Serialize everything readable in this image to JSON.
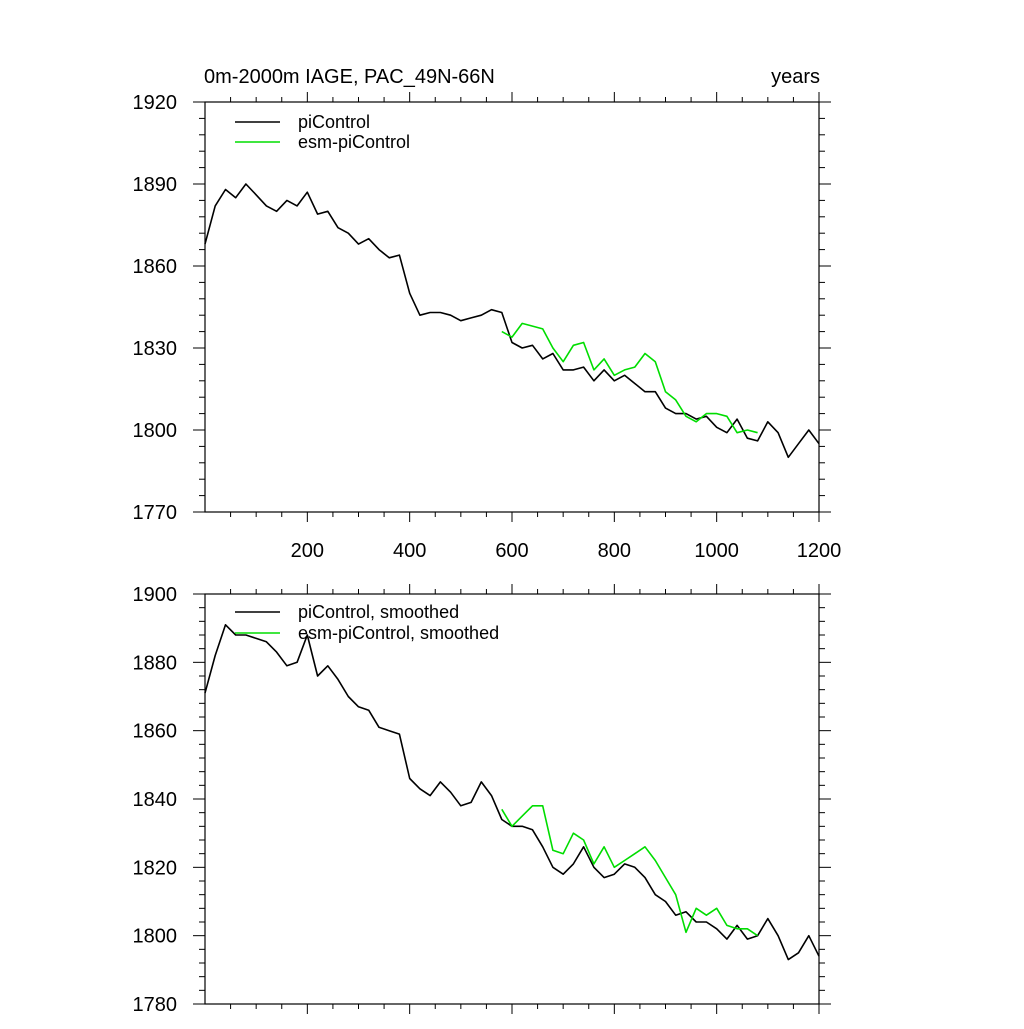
{
  "chart_data": [
    {
      "type": "line",
      "title_left": "0m-2000m IAGE, PAC_49N-66N",
      "title_right": "years",
      "xlim": [
        0,
        1200
      ],
      "ylim": [
        1770,
        1920
      ],
      "x_ticks": [
        200,
        400,
        600,
        800,
        1000,
        1200
      ],
      "y_ticks": [
        1770,
        1800,
        1830,
        1860,
        1890,
        1920
      ],
      "x_tick_labels_visible": true,
      "legend_position": "top-left",
      "series": [
        {
          "name": "piControl",
          "color": "#000000",
          "x": [
            0,
            20,
            40,
            60,
            80,
            100,
            120,
            140,
            160,
            180,
            200,
            220,
            240,
            260,
            280,
            300,
            320,
            340,
            360,
            380,
            400,
            420,
            440,
            460,
            480,
            500,
            520,
            540,
            560,
            580,
            600,
            620,
            640,
            660,
            680,
            700,
            720,
            740,
            760,
            780,
            800,
            820,
            840,
            860,
            880,
            900,
            920,
            940,
            960,
            980,
            1000,
            1020,
            1040,
            1060,
            1080,
            1100,
            1120,
            1140,
            1160,
            1180,
            1200
          ],
          "values": [
            1868,
            1882,
            1888,
            1885,
            1890,
            1886,
            1882,
            1880,
            1884,
            1882,
            1887,
            1879,
            1880,
            1874,
            1872,
            1868,
            1870,
            1866,
            1863,
            1864,
            1850,
            1842,
            1843,
            1843,
            1842,
            1840,
            1841,
            1842,
            1844,
            1843,
            1832,
            1830,
            1831,
            1826,
            1828,
            1822,
            1822,
            1823,
            1818,
            1822,
            1818,
            1820,
            1817,
            1814,
            1814,
            1808,
            1806,
            1806,
            1804,
            1805,
            1801,
            1799,
            1804,
            1797,
            1796,
            1803,
            1799,
            1790,
            1795,
            1800,
            1795
          ]
        },
        {
          "name": "esm-piControl",
          "color": "#00dd00",
          "x": [
            580,
            600,
            620,
            640,
            660,
            680,
            700,
            720,
            740,
            760,
            780,
            800,
            820,
            840,
            860,
            880,
            900,
            920,
            940,
            960,
            980,
            1000,
            1020,
            1040,
            1060,
            1080
          ],
          "values": [
            1836,
            1834,
            1839,
            1838,
            1837,
            1830,
            1825,
            1831,
            1832,
            1822,
            1826,
            1820,
            1822,
            1823,
            1828,
            1825,
            1814,
            1811,
            1805,
            1803,
            1806,
            1806,
            1805,
            1799,
            1800,
            1799
          ]
        }
      ]
    },
    {
      "type": "line",
      "xlim": [
        0,
        1200
      ],
      "ylim": [
        1780,
        1900
      ],
      "x_ticks": [
        200,
        400,
        600,
        800,
        1000,
        1200
      ],
      "y_ticks": [
        1780,
        1800,
        1820,
        1840,
        1860,
        1880,
        1900
      ],
      "x_tick_labels_visible": false,
      "legend_position": "top-left",
      "series": [
        {
          "name": "piControl, smoothed",
          "color": "#000000",
          "x": [
            0,
            20,
            40,
            60,
            80,
            100,
            120,
            140,
            160,
            180,
            200,
            220,
            240,
            260,
            280,
            300,
            320,
            340,
            360,
            380,
            400,
            420,
            440,
            460,
            480,
            500,
            520,
            540,
            560,
            580,
            600,
            620,
            640,
            660,
            680,
            700,
            720,
            740,
            760,
            780,
            800,
            820,
            840,
            860,
            880,
            900,
            920,
            940,
            960,
            980,
            1000,
            1020,
            1040,
            1060,
            1080,
            1100,
            1120,
            1140,
            1160,
            1180,
            1200
          ],
          "values": [
            1871,
            1882,
            1891,
            1888,
            1888,
            1887,
            1886,
            1883,
            1879,
            1880,
            1888,
            1876,
            1879,
            1875,
            1870,
            1867,
            1866,
            1861,
            1860,
            1859,
            1846,
            1843,
            1841,
            1845,
            1842,
            1838,
            1839,
            1845,
            1841,
            1834,
            1832,
            1832,
            1831,
            1826,
            1820,
            1818,
            1821,
            1826,
            1820,
            1817,
            1818,
            1821,
            1820,
            1817,
            1812,
            1810,
            1806,
            1807,
            1804,
            1804,
            1802,
            1799,
            1803,
            1799,
            1800,
            1805,
            1800,
            1793,
            1795,
            1800,
            1794
          ]
        },
        {
          "name": "esm-piControl, smoothed",
          "color": "#00dd00",
          "x": [
            580,
            600,
            620,
            640,
            660,
            680,
            700,
            720,
            740,
            760,
            780,
            800,
            820,
            840,
            860,
            880,
            900,
            920,
            940,
            960,
            980,
            1000,
            1020,
            1040,
            1060,
            1080
          ],
          "values": [
            1837,
            1832,
            1835,
            1838,
            1838,
            1825,
            1824,
            1830,
            1828,
            1821,
            1826,
            1820,
            1822,
            1824,
            1826,
            1822,
            1817,
            1812,
            1801,
            1808,
            1806,
            1808,
            1803,
            1802,
            1802,
            1800
          ]
        }
      ]
    }
  ]
}
